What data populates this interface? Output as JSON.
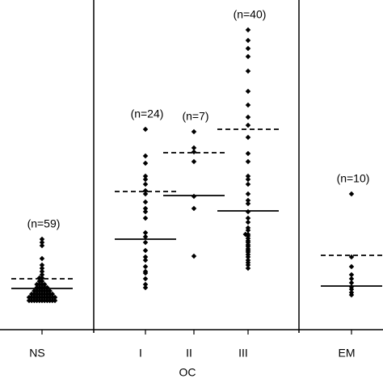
{
  "chart_data": {
    "type": "strip",
    "categories": [
      "NS",
      "I",
      "II",
      "III",
      "EM"
    ],
    "group_label": "OC",
    "n_labels": [
      "(n=59)",
      "(n=24)",
      "(n=7)",
      "(n=40)",
      "(n=10)"
    ],
    "ylim": [
      0,
      102
    ],
    "color": "#000000",
    "points": [
      [
        28,
        27,
        26,
        22,
        20,
        19,
        18,
        17,
        16,
        16,
        15,
        15,
        14,
        14,
        14,
        13,
        13,
        13,
        13,
        12,
        12,
        12,
        12,
        12,
        12,
        11,
        11,
        11,
        11,
        11,
        11,
        11,
        11,
        11,
        10,
        10,
        10,
        10,
        10,
        10,
        10,
        10,
        10,
        10,
        9,
        9,
        9,
        9,
        9,
        9,
        9,
        9,
        9,
        9,
        9,
        12,
        13,
        14,
        10
      ],
      [
        62,
        53.75,
        51.5,
        47.5,
        46.5,
        45,
        43,
        42,
        39.5,
        37.5,
        36.5,
        34.5,
        30,
        28.75,
        27,
        24.5,
        22.5,
        21.5,
        19.5,
        17.5,
        15.75,
        14,
        13,
        18
      ],
      [
        61.25,
        56.25,
        55,
        52,
        41.25,
        37.5,
        22.75
      ],
      [
        92.75,
        89.5,
        87,
        84.5,
        80,
        73.75,
        69.5,
        65.75,
        63.25,
        59.5,
        54.5,
        52,
        47.5,
        46.5,
        45,
        42,
        40,
        39,
        36.5,
        34.5,
        33.25,
        31.5,
        30.75,
        29.5,
        29,
        28.25,
        27.5,
        27,
        26.25,
        25.75,
        25,
        24.5,
        24,
        23.25,
        22.5,
        21.5,
        20.75,
        20,
        19,
        29.5
      ],
      [
        42,
        22.5,
        19.5,
        17,
        15.75,
        14.5,
        13.25,
        12.5,
        11.5,
        10.75
      ]
    ],
    "solid_line_values": [
      12.75,
      28,
      41.5,
      36.75,
      13.5
    ],
    "dashed_line_values": [
      15.75,
      42.75,
      54.75,
      62,
      23
    ]
  }
}
